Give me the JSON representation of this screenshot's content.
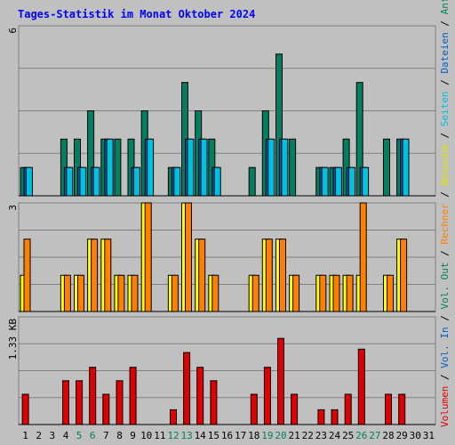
{
  "chart_data": {
    "type": "bar",
    "title": "Tages-Statistik im Monat Oktober 2024",
    "days": [
      "1",
      "2",
      "3",
      "4",
      "5",
      "6",
      "7",
      "8",
      "9",
      "10",
      "11",
      "12",
      "13",
      "14",
      "15",
      "16",
      "17",
      "18",
      "19",
      "20",
      "21",
      "22",
      "23",
      "24",
      "25",
      "26",
      "27",
      "28",
      "29",
      "30",
      "31"
    ],
    "weekend_days": [
      "5",
      "6",
      "12",
      "13",
      "19",
      "20",
      "26",
      "27"
    ],
    "panels": [
      {
        "id": "top",
        "y_label": "6",
        "ylim": [
          0,
          6
        ],
        "series": [
          {
            "name": "Anfragen",
            "color": "#008060",
            "values": [
              1,
              0,
              0,
              2,
              2,
              3,
              2,
              2,
              2,
              3,
              0,
              1,
              4,
              3,
              2,
              0,
              0,
              1,
              3,
              5,
              2,
              0,
              1,
              1,
              2,
              4,
              0,
              2,
              2,
              0,
              0
            ]
          },
          {
            "name": "Dateien",
            "color": "#0060c0",
            "values": [
              1,
              0,
              0,
              1,
              1,
              1,
              2,
              0,
              1,
              2,
              0,
              1,
              2,
              2,
              1,
              0,
              0,
              0,
              2,
              2,
              0,
              0,
              1,
              1,
              1,
              1,
              0,
              0,
              2,
              0,
              0
            ]
          },
          {
            "name": "Seiten",
            "color": "#00c0e0",
            "values": [
              1,
              0,
              0,
              1,
              1,
              1,
              2,
              0,
              1,
              2,
              0,
              1,
              2,
              2,
              1,
              0,
              0,
              0,
              2,
              2,
              0,
              0,
              1,
              1,
              1,
              1,
              0,
              0,
              2,
              0,
              0
            ]
          }
        ]
      },
      {
        "id": "middle",
        "y_label": "3",
        "ylim": [
          0,
          3
        ],
        "series": [
          {
            "name": "Besuche",
            "color": "#ffff00",
            "values": [
              1,
              0,
              0,
              1,
              1,
              2,
              2,
              1,
              1,
              3,
              0,
              1,
              3,
              2,
              1,
              0,
              0,
              1,
              2,
              2,
              1,
              0,
              1,
              1,
              1,
              1,
              0,
              1,
              2,
              0,
              0
            ]
          },
          {
            "name": "Rechner",
            "color": "#ff8000",
            "values": [
              2,
              0,
              0,
              1,
              1,
              2,
              2,
              1,
              1,
              3,
              0,
              1,
              3,
              2,
              1,
              0,
              0,
              1,
              2,
              2,
              1,
              0,
              1,
              1,
              1,
              3,
              0,
              1,
              2,
              0,
              0
            ]
          }
        ]
      },
      {
        "id": "bottom",
        "y_label": "1.33 KB",
        "ylim": [
          0,
          1.6
        ],
        "series": [
          {
            "name": "Vol. Out",
            "color": "#008060",
            "values": []
          },
          {
            "name": "Vol. In",
            "color": "#0060c0",
            "values": []
          },
          {
            "name": "Volumen",
            "color": "#e00000",
            "values": [
              0.45,
              0,
              0,
              0.65,
              0.65,
              0.85,
              0.45,
              0.65,
              0.85,
              0,
              0,
              0.22,
              1.07,
              0.85,
              0.65,
              0,
              0,
              0.45,
              0.85,
              1.28,
              0.45,
              0,
              0.22,
              0.22,
              0.45,
              1.12,
              0,
              0.45,
              0.45,
              0,
              0
            ]
          }
        ]
      }
    ],
    "legend_right": [
      {
        "text": "Volumen",
        "color": "#e00000"
      },
      {
        "text": "Vol. In",
        "color": "#0060c0"
      },
      {
        "text": "Vol. Out",
        "color": "#008060"
      },
      {
        "text": "Rechner",
        "color": "#ff8000"
      },
      {
        "text": "Besuche",
        "color": "#e0e000"
      },
      {
        "text": "Seiten",
        "color": "#00c0e0"
      },
      {
        "text": "Dateien",
        "color": "#0060c0"
      },
      {
        "text": "Anfragen",
        "color": "#008060"
      }
    ],
    "legend_separator": " / ",
    "colors": {
      "title": "#0000ff",
      "background": "#c0c0c0",
      "gridline": "#808080",
      "weekend_label": "#008060",
      "weekday_label": "#000000"
    }
  }
}
